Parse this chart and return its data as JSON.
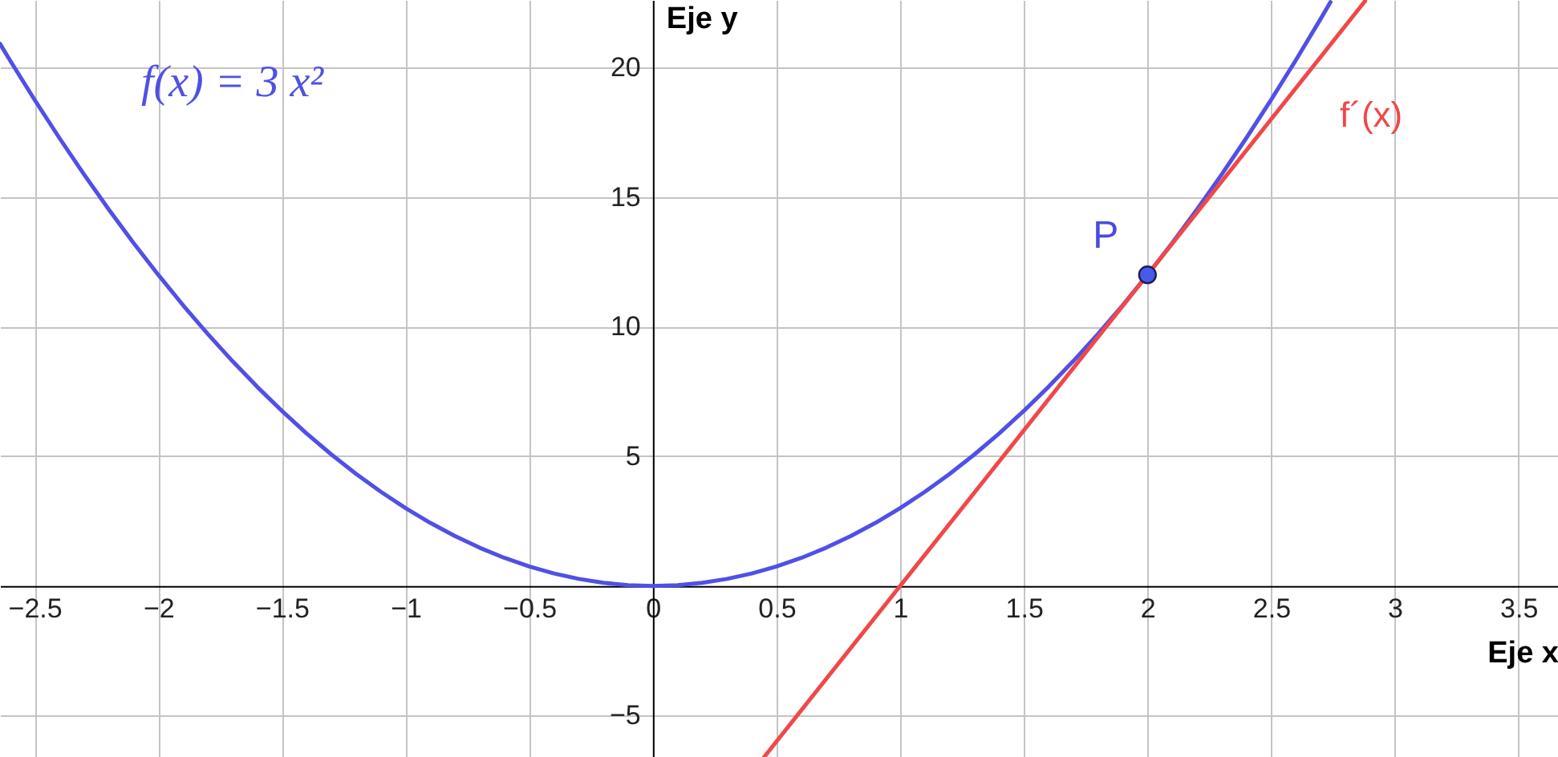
{
  "chart_data": {
    "type": "line",
    "xlabel": "Eje x",
    "ylabel": "Eje y",
    "xlim": [
      -2.64,
      3.66
    ],
    "ylim": [
      -6.6,
      22.6
    ],
    "xticks": [
      -2.5,
      -2,
      -1.5,
      -1,
      -0.5,
      0,
      0.5,
      1,
      1.5,
      2,
      2.5,
      3,
      3.5
    ],
    "yticks": [
      -5,
      5,
      10,
      15,
      20
    ],
    "grid": true,
    "line_style": "solid",
    "marker": "none",
    "series": [
      {
        "name": "f(x) = 3 x²",
        "color": "#5050e6",
        "x": [
          -2.64,
          -2.6,
          -2.5,
          -2.4,
          -2.3,
          -2.2,
          -2.1,
          -2,
          -1.9,
          -1.8,
          -1.7,
          -1.6,
          -1.5,
          -1.4,
          -1.3,
          -1.2,
          -1.1,
          -1,
          -0.9,
          -0.8,
          -0.7,
          -0.6,
          -0.5,
          -0.4,
          -0.3,
          -0.2,
          -0.1,
          0,
          0.1,
          0.2,
          0.3,
          0.4,
          0.5,
          0.6,
          0.7,
          0.8,
          0.9,
          1,
          1.1,
          1.2,
          1.3,
          1.4,
          1.5,
          1.6,
          1.7,
          1.8,
          1.9,
          2,
          2.1,
          2.2,
          2.3,
          2.4,
          2.5,
          2.6,
          2.7,
          2.74
        ],
        "values": [
          20.91,
          20.28,
          18.75,
          17.28,
          15.87,
          14.52,
          13.23,
          12,
          10.83,
          9.72,
          8.67,
          7.68,
          6.75,
          5.88,
          5.07,
          4.32,
          3.63,
          3,
          2.43,
          1.92,
          1.47,
          1.08,
          0.75,
          0.48,
          0.27,
          0.12,
          0.03,
          0,
          0.03,
          0.12,
          0.27,
          0.48,
          0.75,
          1.08,
          1.47,
          1.92,
          2.43,
          3,
          3.63,
          4.32,
          5.07,
          5.88,
          6.75,
          7.68,
          8.67,
          9.72,
          10.83,
          12,
          13.23,
          14.52,
          15.87,
          17.28,
          18.75,
          20.28,
          21.87,
          22.52
        ]
      },
      {
        "name": "f´(x)",
        "color": "#f04848",
        "x": [
          0.45,
          2.88
        ],
        "values": [
          -6.6,
          22.56
        ]
      },
      {
        "type": "scatter",
        "marker": "circle",
        "color": "#4a5ae8",
        "x": [
          2
        ],
        "values": [
          12
        ]
      }
    ],
    "annotations": [
      {
        "text": "P",
        "x": 2,
        "y": 12
      }
    ]
  }
}
